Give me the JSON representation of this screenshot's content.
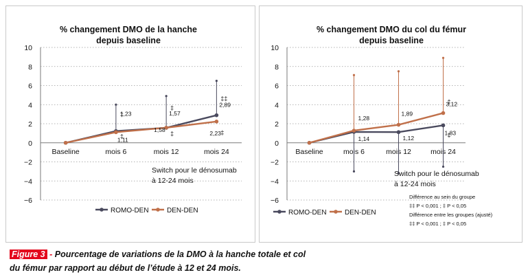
{
  "figure": {
    "label": "Figure 3",
    "separator": " - ",
    "caption_line1": "Pourcentage de variations de la DMO à la hanche totale et col",
    "caption_line2": "du fémur par rapport au début de l’étude à 12 et 24 mois."
  },
  "colors": {
    "romo_den": "#4a4a5e",
    "den_den": "#c0704a",
    "axis": "#7a7a7a"
  },
  "chart_data": [
    {
      "type": "line",
      "title": "% changement DMO de la hanche",
      "subtitle": "depuis baseline",
      "categories": [
        "Baseline",
        "mois 6",
        "mois 12",
        "mois 24"
      ],
      "ylim": [
        -6,
        10
      ],
      "yticks": [
        -6,
        -4,
        -2,
        0,
        2,
        4,
        6,
        8,
        10
      ],
      "grid": "dotted-horizontal",
      "legend": "bottom-center",
      "series": [
        {
          "name": "ROMO-DEN",
          "color": "#4a4a5e",
          "values": [
            0,
            1.23,
            1.57,
            2.89
          ],
          "labels": [
            "",
            "1,23",
            "1,57",
            "2,89"
          ],
          "error_high": [
            null,
            4.0,
            4.9,
            6.5
          ],
          "error_low": [
            null,
            null,
            null,
            null
          ]
        },
        {
          "name": "DEN-DEN",
          "color": "#c0704a",
          "values": [
            0,
            1.11,
            1.58,
            2.23
          ],
          "labels": [
            "",
            "1,11",
            "1,58",
            "2,23"
          ],
          "error_high": [
            null,
            null,
            null,
            null
          ],
          "error_low": [
            null,
            null,
            null,
            null
          ]
        }
      ],
      "markers": [
        {
          "text": "‡",
          "x": 1,
          "y": 2.75
        },
        {
          "text": "‡",
          "x": 1,
          "y": 0.45
        },
        {
          "text": "‡",
          "x": 2,
          "y": 3.45
        },
        {
          "text": "‡",
          "x": 2,
          "y": 0.75
        },
        {
          "text": "‡‡",
          "x": 3,
          "y": 4.4
        },
        {
          "text": "‡",
          "x": 3,
          "y": 0.85
        }
      ],
      "annotation": [
        "Switch pour le dénosumab",
        "à 12-24 mois"
      ],
      "notes": []
    },
    {
      "type": "line",
      "title": "% changement DMO du col du fémur",
      "subtitle": "depuis baseline",
      "categories": [
        "Baseline",
        "mois 6",
        "mois 12",
        "mois 24"
      ],
      "ylim": [
        -6,
        10
      ],
      "yticks": [
        -6,
        -4,
        -2,
        0,
        2,
        4,
        6,
        8,
        10
      ],
      "grid": "dotted-horizontal",
      "legend": "bottom-left",
      "series": [
        {
          "name": "ROMO-DEN",
          "color": "#4a4a5e",
          "values": [
            0,
            1.14,
            1.12,
            1.83
          ],
          "labels": [
            "",
            "1,14",
            "1,12",
            "1,83"
          ],
          "error_high": [
            null,
            null,
            null,
            null
          ],
          "error_low": [
            null,
            -3.0,
            -3.2,
            -2.5
          ]
        },
        {
          "name": "DEN-DEN",
          "color": "#c0704a",
          "values": [
            0,
            1.28,
            1.89,
            3.12
          ],
          "labels": [
            "",
            "1,28",
            "1,89",
            "3,12"
          ],
          "error_high": [
            null,
            7.1,
            7.5,
            8.9
          ],
          "error_low": [
            null,
            null,
            null,
            null
          ]
        }
      ],
      "markers": [
        {
          "text": "‡",
          "x": 3,
          "y": 4.1
        },
        {
          "text": "‡",
          "x": 3,
          "y": 0.6
        }
      ],
      "annotation": [
        "Switch pour le dénosumab",
        "à 12-24 mois"
      ],
      "notes": [
        "Différence au sein du groupe",
        "‡‡ P < 0,001 ; ‡ P < 0,05",
        "Différence entre les groupes (ajusté)",
        "‡‡ P < 0,001 ; ‡ P < 0,05"
      ]
    }
  ]
}
